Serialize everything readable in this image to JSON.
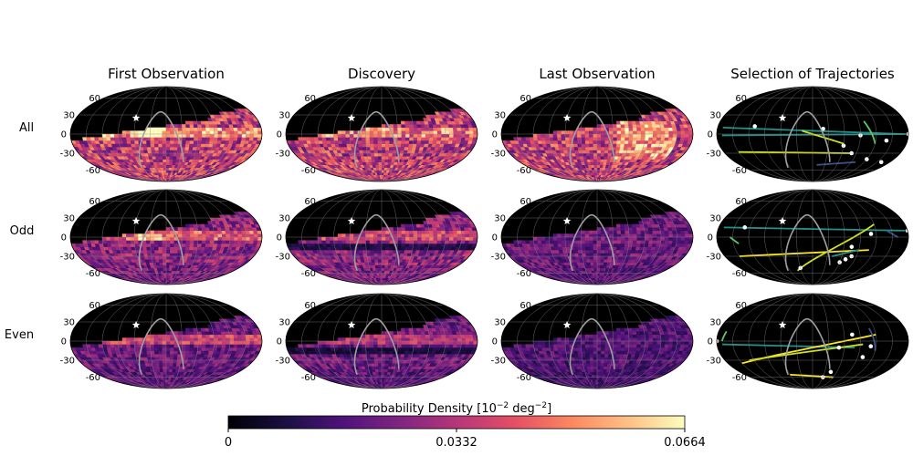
{
  "chart_data": {
    "type": "heatmap",
    "projection": "mollweide",
    "column_titles": [
      "First Observation",
      "Discovery",
      "Last Observation",
      "Selection of Trajectories"
    ],
    "row_labels": [
      "All",
      "Odd",
      "Even"
    ],
    "lat_tick_labels": [
      "60",
      "30",
      "0",
      "-30",
      "-60"
    ],
    "lat_ticks": [
      60,
      30,
      0,
      -30,
      -60
    ],
    "marker": {
      "symbol": "star",
      "lon": -60,
      "lat": 25,
      "color": "#ffffff"
    },
    "colorbar": {
      "label": "Probability Density [10",
      "label_exp1": "−2",
      "label_mid": " deg",
      "label_exp2": "−2",
      "label_end": "]",
      "tick_labels": [
        "0",
        "0.0332",
        "0.0664"
      ],
      "range": [
        0,
        0.0664
      ],
      "colormap": "magma"
    },
    "trajectory_colors": [
      "#3b518b",
      "#21918c",
      "#5ec962",
      "#d0e11c",
      "#fde725"
    ],
    "background_color": "#000000",
    "grid_color": "#888888",
    "boundary_color": "#a0a0a0"
  }
}
